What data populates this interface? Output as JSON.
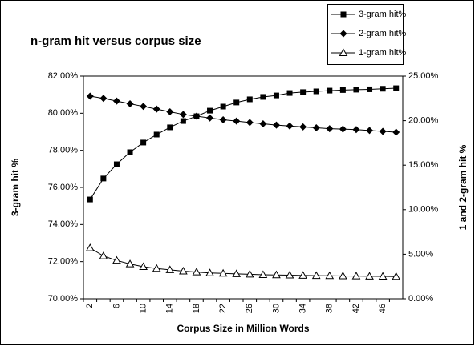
{
  "chart_data": {
    "type": "line",
    "title": "n-gram hit versus corpus size",
    "x_label": "Corpus Size in Million Words",
    "y_label": "3-gram hit %",
    "y2_label": "1 and 2-gram hit %",
    "categories": [
      2,
      null,
      6,
      null,
      10,
      null,
      14,
      null,
      18,
      null,
      22,
      null,
      26,
      null,
      30,
      null,
      34,
      null,
      38,
      null,
      42,
      null,
      46,
      null
    ],
    "ylim": [
      70,
      82
    ],
    "yticks": [
      {
        "value": 70,
        "label": "70.00%"
      },
      {
        "value": 72,
        "label": "72.00%"
      },
      {
        "value": 74,
        "label": "74.00%"
      },
      {
        "value": 76,
        "label": "76.00%"
      },
      {
        "value": 78,
        "label": "78.00%"
      },
      {
        "value": 80,
        "label": "80.00%"
      },
      {
        "value": 82,
        "label": "82.00%"
      }
    ],
    "y2lim": [
      0,
      25
    ],
    "y2ticks": [
      {
        "value": 0,
        "label": "0.00%"
      },
      {
        "value": 5,
        "label": "5.00%"
      },
      {
        "value": 10,
        "label": "10.00%"
      },
      {
        "value": 15,
        "label": "15.00%"
      },
      {
        "value": 20,
        "label": "20.00%"
      },
      {
        "value": 25,
        "label": "25.00%"
      }
    ],
    "grid": false,
    "legend": "top-right",
    "series": [
      {
        "name": "3-gram hit%",
        "color": "#000000",
        "marker": "square",
        "axis": "y",
        "values": [
          75.35,
          76.48,
          77.25,
          77.9,
          78.42,
          78.85,
          79.24,
          79.58,
          79.84,
          80.14,
          80.36,
          80.58,
          80.75,
          80.88,
          80.96,
          81.09,
          81.14,
          81.18,
          81.22,
          81.25,
          81.27,
          81.29,
          81.32,
          81.35
        ]
      },
      {
        "name": "2-gram hit%",
        "color": "#000000",
        "marker": "diamond",
        "axis": "y2",
        "values": [
          22.75,
          22.5,
          22.2,
          21.9,
          21.6,
          21.3,
          21.0,
          20.7,
          20.5,
          20.3,
          20.1,
          19.95,
          19.8,
          19.65,
          19.5,
          19.4,
          19.3,
          19.2,
          19.1,
          19.05,
          19.0,
          18.9,
          18.8,
          18.7
        ]
      },
      {
        "name": "1-gram hit%",
        "color": "#000000",
        "marker": "triangle",
        "axis": "y2",
        "values": [
          5.7,
          4.8,
          4.3,
          3.9,
          3.6,
          3.4,
          3.25,
          3.1,
          3.0,
          2.9,
          2.85,
          2.8,
          2.75,
          2.7,
          2.68,
          2.65,
          2.62,
          2.6,
          2.58,
          2.56,
          2.55,
          2.53,
          2.52,
          2.5
        ]
      }
    ]
  }
}
